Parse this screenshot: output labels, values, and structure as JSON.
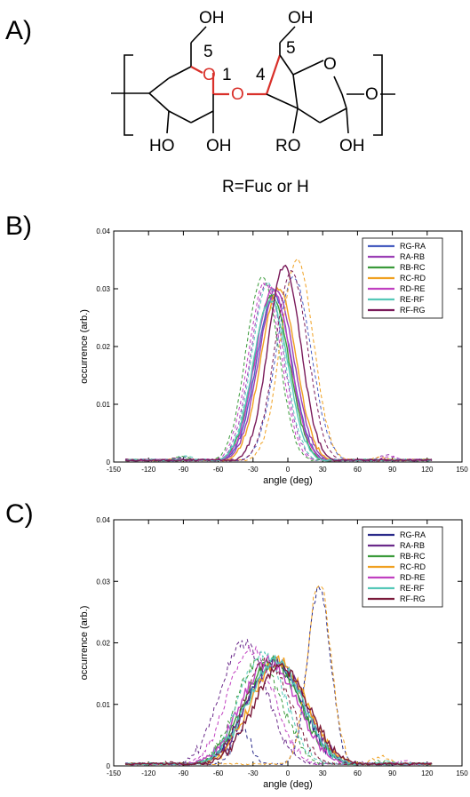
{
  "panels": {
    "a": "A)",
    "b": "B)",
    "c": "C)"
  },
  "structure": {
    "oh_top_left": "OH",
    "oh_top_right": "OH",
    "num_5_left": "5",
    "num_1": "1",
    "num_4": "4",
    "num_5_right": "5",
    "ring_o_left": "O",
    "link_o": "O",
    "ring_o_right": "O",
    "o_right": "O",
    "ho_bottom": "HO",
    "oh_bottom_left": "OH",
    "ro_bottom": "RO",
    "oh_bottom_right": "OH",
    "caption": "R=Fuc or H",
    "highlight_color": "#d9302a"
  },
  "chart_data": [
    {
      "id": "B",
      "type": "line",
      "xlabel": "angle (deg)",
      "ylabel": "occurrence (arb.)",
      "xlim": [
        -150,
        150
      ],
      "ylim": [
        0,
        0.04
      ],
      "xticks": [
        -150,
        -120,
        -90,
        -60,
        -30,
        0,
        30,
        60,
        90,
        120,
        150
      ],
      "yticks": [
        0,
        0.01,
        0.02,
        0.03,
        0.04
      ],
      "ytick_labels": [
        "0",
        "0.01",
        "0.02",
        "0.03",
        "0.04"
      ],
      "legend_position": "top-right",
      "series": [
        {
          "name": "RG-RA",
          "color": "#4a5fc1",
          "solid": {
            "mu": -12,
            "sigma": 15,
            "peak": 0.029
          },
          "dashed": {
            "mu": 5,
            "sigma": 15,
            "peak": 0.032,
            "side_mu": -90,
            "side_peak": 0.0008
          }
        },
        {
          "name": "RA-RB",
          "color": "#9b3fb5",
          "solid": {
            "mu": -10,
            "sigma": 15,
            "peak": 0.03
          },
          "dashed": {
            "mu": -18,
            "sigma": 14,
            "peak": 0.031,
            "side_mu": 85,
            "side_peak": 0.0012
          }
        },
        {
          "name": "RB-RC",
          "color": "#3a9a3a",
          "solid": {
            "mu": -14,
            "sigma": 15,
            "peak": 0.029
          },
          "dashed": {
            "mu": -22,
            "sigma": 14,
            "peak": 0.032,
            "side_mu": -92,
            "side_peak": 0.001
          }
        },
        {
          "name": "RC-RD",
          "color": "#f0a020",
          "solid": {
            "mu": -8,
            "sigma": 15,
            "peak": 0.03
          },
          "dashed": {
            "mu": 8,
            "sigma": 14,
            "peak": 0.035,
            "side_mu": 80,
            "side_peak": 0.0008
          }
        },
        {
          "name": "RD-RE",
          "color": "#c040c0",
          "solid": {
            "mu": -13,
            "sigma": 15,
            "peak": 0.03
          },
          "dashed": {
            "mu": -20,
            "sigma": 14,
            "peak": 0.031,
            "side_mu": 88,
            "side_peak": 0.001
          }
        },
        {
          "name": "RE-RF",
          "color": "#55c8b8",
          "solid": {
            "mu": -15,
            "sigma": 15,
            "peak": 0.028
          },
          "dashed": {
            "mu": -17,
            "sigma": 14,
            "peak": 0.031,
            "side_mu": -88,
            "side_peak": 0.001
          }
        },
        {
          "name": "RF-RG",
          "color": "#7a1a5a",
          "solid": {
            "mu": -3,
            "sigma": 14,
            "peak": 0.034
          },
          "dashed": {
            "mu": 3,
            "sigma": 14,
            "peak": 0.033,
            "side_mu": -95,
            "side_peak": 0.0007
          }
        }
      ]
    },
    {
      "id": "C",
      "type": "line",
      "xlabel": "angle (deg)",
      "ylabel": "occurrence (arb.)",
      "xlim": [
        -150,
        150
      ],
      "ylim": [
        0,
        0.04
      ],
      "xticks": [
        -150,
        -120,
        -90,
        -60,
        -30,
        0,
        30,
        60,
        90,
        120,
        150
      ],
      "yticks": [
        0,
        0.01,
        0.02,
        0.03,
        0.04
      ],
      "ytick_labels": [
        "0",
        "0.01",
        "0.02",
        "0.03",
        "0.04"
      ],
      "legend_position": "top-right",
      "series": [
        {
          "name": "RG-RA",
          "color": "#2a2a8a",
          "solid": {
            "mu": -12,
            "sigma": 24,
            "peak": 0.017
          },
          "dashed": {
            "mu": 27,
            "sigma": 10,
            "peak": 0.029,
            "side_mu": -40,
            "side_peak": 0.006
          }
        },
        {
          "name": "RA-RB",
          "color": "#6a2a8a",
          "solid": {
            "mu": -10,
            "sigma": 24,
            "peak": 0.017
          },
          "dashed": {
            "mu": -38,
            "sigma": 20,
            "peak": 0.02,
            "side_mu": 60,
            "side_peak": 0.0005
          }
        },
        {
          "name": "RB-RC",
          "color": "#3a9a3a",
          "solid": {
            "mu": -14,
            "sigma": 24,
            "peak": 0.017
          },
          "dashed": {
            "mu": -25,
            "sigma": 20,
            "peak": 0.017,
            "side_mu": 80,
            "side_peak": 0.0008
          }
        },
        {
          "name": "RC-RD",
          "color": "#f0a020",
          "solid": {
            "mu": -8,
            "sigma": 24,
            "peak": 0.017
          },
          "dashed": {
            "mu": 27,
            "sigma": 10,
            "peak": 0.03,
            "side_mu": 80,
            "side_peak": 0.0015
          }
        },
        {
          "name": "RD-RE",
          "color": "#c040c0",
          "solid": {
            "mu": -16,
            "sigma": 24,
            "peak": 0.017
          },
          "dashed": {
            "mu": -32,
            "sigma": 20,
            "peak": 0.019,
            "side_mu": 100,
            "side_peak": 0.0007
          }
        },
        {
          "name": "RE-RF",
          "color": "#55c8b8",
          "solid": {
            "mu": -11,
            "sigma": 24,
            "peak": 0.017
          },
          "dashed": {
            "mu": -22,
            "sigma": 20,
            "peak": 0.018,
            "side_mu": 90,
            "side_peak": 0.0007
          }
        },
        {
          "name": "RF-RG",
          "color": "#7a1a3a",
          "solid": {
            "mu": -6,
            "sigma": 24,
            "peak": 0.016
          },
          "dashed": {
            "mu": -18,
            "sigma": 20,
            "peak": 0.017,
            "side_mu": -100,
            "side_peak": 0.0006
          }
        }
      ]
    }
  ]
}
